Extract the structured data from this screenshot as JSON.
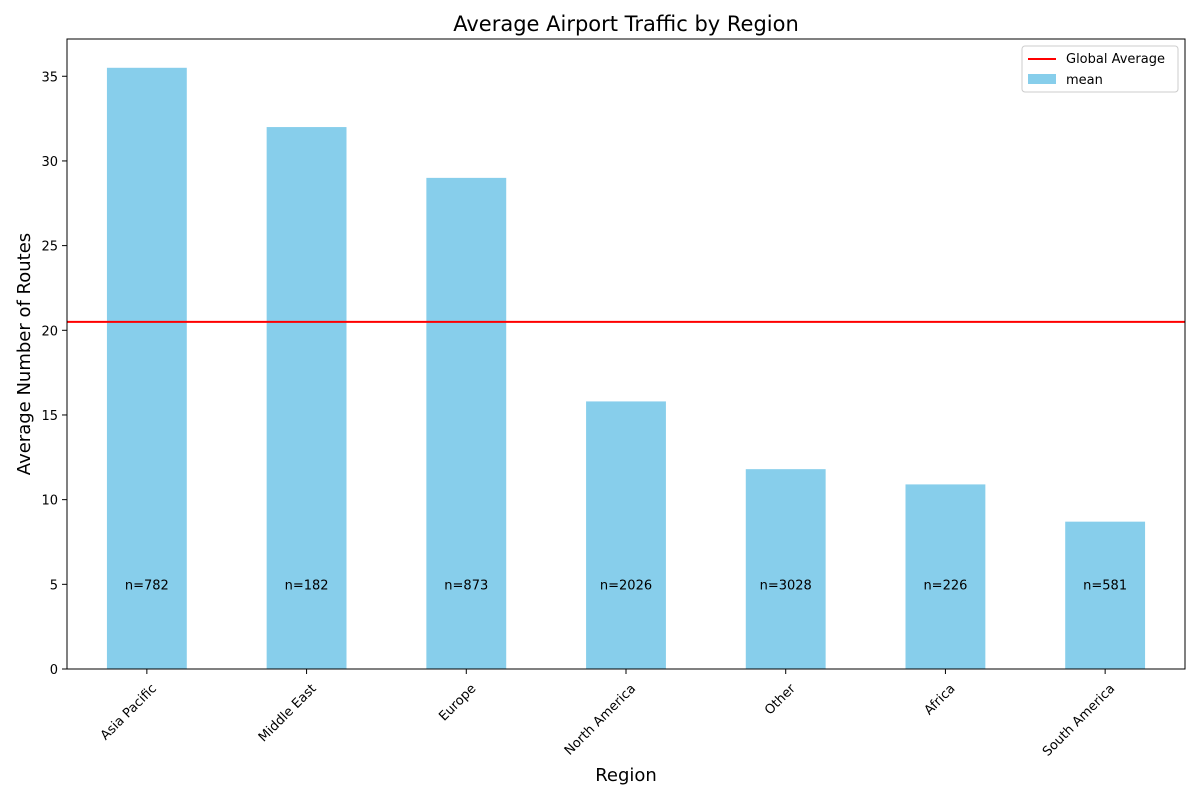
{
  "chart_data": {
    "type": "bar",
    "title": "Average Airport Traffic by Region",
    "xlabel": "Region",
    "ylabel": "Average Number of Routes",
    "categories": [
      "Asia Pacific",
      "Middle East",
      "Europe",
      "North America",
      "Other",
      "Africa",
      "South America"
    ],
    "series": [
      {
        "name": "mean",
        "values": [
          35.5,
          32.0,
          29.0,
          15.8,
          11.8,
          10.9,
          8.7
        ],
        "color": "#87ceeb"
      }
    ],
    "bar_labels": [
      "n=782",
      "n=182",
      "n=873",
      "n=2026",
      "n=3028",
      "n=226",
      "n=581"
    ],
    "bar_label_y": 5,
    "reference_line": {
      "name": "Global Average",
      "value": 20.5,
      "color": "#ff0000"
    },
    "ylim": [
      0,
      37.2
    ],
    "yticks": [
      0,
      5,
      10,
      15,
      20,
      25,
      30,
      35
    ],
    "grid": false,
    "legend": {
      "placement": "top-right",
      "entries": [
        "Global Average",
        "mean"
      ]
    }
  }
}
